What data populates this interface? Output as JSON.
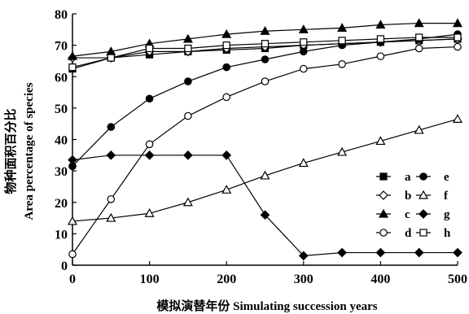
{
  "chart_data": {
    "type": "line",
    "title": "",
    "xlabel": "模拟演替年份 Simulating succession years",
    "ylabel_cn": "物种面积百分比",
    "ylabel_en": "Area percentage of species",
    "xlim": [
      0,
      500
    ],
    "ylim": [
      0,
      80
    ],
    "xticks": [
      0,
      100,
      200,
      300,
      400,
      500
    ],
    "yticks": [
      0,
      10,
      20,
      30,
      40,
      50,
      60,
      70,
      80
    ],
    "grid": false,
    "legend_position": "right",
    "x": [
      0,
      50,
      100,
      150,
      200,
      250,
      300,
      350,
      400,
      450,
      500
    ],
    "series": [
      {
        "name": "a",
        "marker": "square-filled",
        "values": [
          62.5,
          66,
          67,
          68,
          68.5,
          69,
          70,
          70.5,
          71,
          71.5,
          72
        ]
      },
      {
        "name": "b",
        "marker": "diamond-open",
        "values": [
          66,
          66,
          68,
          68,
          69,
          69.5,
          70,
          70.5,
          71,
          71.5,
          72
        ]
      },
      {
        "name": "c",
        "marker": "triangle-filled",
        "values": [
          66.5,
          68,
          70.5,
          72,
          73.5,
          74.5,
          75,
          75.5,
          76.5,
          77,
          77
        ]
      },
      {
        "name": "d",
        "marker": "circle-open",
        "values": [
          3.5,
          21,
          38.5,
          47.5,
          53.5,
          58.5,
          62.5,
          64,
          66.5,
          69,
          69.5
        ]
      },
      {
        "name": "e",
        "marker": "circle-filled",
        "values": [
          31.5,
          44,
          53,
          58.5,
          63,
          65.5,
          68,
          70,
          71,
          72,
          73.5
        ]
      },
      {
        "name": "f",
        "marker": "triangle-open",
        "values": [
          14,
          15,
          16.5,
          20,
          24,
          28.5,
          32.5,
          36,
          39.5,
          43,
          46.5
        ]
      },
      {
        "name": "g",
        "marker": "diamond-filled",
        "values": [
          33.5,
          35,
          35,
          35,
          35,
          16,
          3,
          4,
          4,
          4,
          4
        ]
      },
      {
        "name": "h",
        "marker": "square-open",
        "values": [
          63,
          66,
          69,
          69,
          70,
          70.5,
          71,
          71.5,
          72,
          72.5,
          72.5
        ]
      }
    ]
  }
}
